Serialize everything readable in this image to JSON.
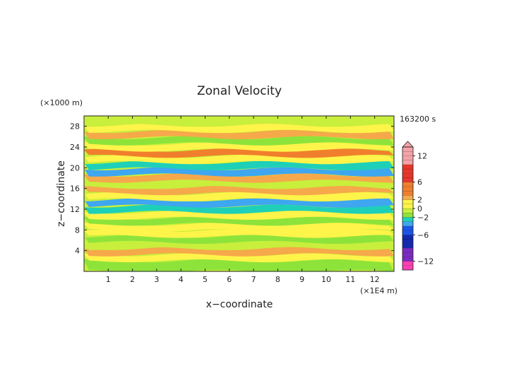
{
  "chart_data": {
    "type": "heatmap",
    "title": "Zonal Velocity",
    "time_label": "163200 s",
    "xlabel": "x−coordinate",
    "ylabel": "z−coordinate",
    "x_scale_label": "(×1E4 m)",
    "y_scale_label": "(×1000 m)",
    "xlim": [
      0,
      12.8
    ],
    "ylim": [
      0,
      30
    ],
    "x_ticks": [
      1,
      2,
      3,
      4,
      5,
      6,
      7,
      8,
      9,
      10,
      11,
      12
    ],
    "x_tick_labels": [
      "1",
      "2",
      "3",
      "4",
      "5",
      "6",
      "7",
      "8",
      "9",
      "10",
      "11",
      "12"
    ],
    "y_ticks": [
      4,
      8,
      12,
      16,
      20,
      24,
      28
    ],
    "y_tick_labels": [
      "4",
      "8",
      "12",
      "16",
      "20",
      "24",
      "28"
    ],
    "colorbar": {
      "levels": [
        -14,
        -13,
        -12,
        -11,
        -10,
        -9,
        -8,
        -7,
        -6,
        -5,
        -4,
        -3,
        -2,
        -1,
        0,
        1,
        2,
        3,
        4,
        5,
        6,
        7,
        8,
        9,
        10,
        11,
        12,
        13,
        14
      ],
      "tick_values": [
        12,
        6,
        2,
        0,
        -2,
        -6,
        -12
      ],
      "tick_labels": [
        "12",
        "6",
        "2",
        "0",
        "−2",
        "−6",
        "−12"
      ]
    },
    "colors": {
      "pink_high": "#f4a3a8",
      "red": "#e8352a",
      "orange": "#f07f2d",
      "light_orange": "#f5a94a",
      "yellow": "#fff44a",
      "yellow_green": "#c8ef3c",
      "green": "#8ee33a",
      "cyan": "#1fd0b8",
      "light_blue": "#3fa6f0",
      "blue": "#1a55e8",
      "dark_blue": "#1428b0",
      "purple": "#7a2bc0",
      "magenta": "#ff3fb4"
    },
    "bands": [
      {
        "z": 1.5,
        "value": -1.5
      },
      {
        "z": 2.6,
        "value": 1.2
      },
      {
        "z": 3.8,
        "value": 2.4
      },
      {
        "z": 5.0,
        "value": 0.3
      },
      {
        "z": 6.2,
        "value": -0.9
      },
      {
        "z": 7.3,
        "value": 1.6
      },
      {
        "z": 8.5,
        "value": 0.8
      },
      {
        "z": 9.7,
        "value": -0.8
      },
      {
        "z": 10.8,
        "value": 1.9
      },
      {
        "z": 12.0,
        "value": -1.6
      },
      {
        "z": 13.2,
        "value": -3.2
      },
      {
        "z": 14.4,
        "value": 1.2
      },
      {
        "z": 15.6,
        "value": 2.6
      },
      {
        "z": 16.8,
        "value": -0.5
      },
      {
        "z": 18.0,
        "value": 2.8
      },
      {
        "z": 19.2,
        "value": -3.6
      },
      {
        "z": 20.4,
        "value": -2.4
      },
      {
        "z": 21.6,
        "value": 0.9
      },
      {
        "z": 22.8,
        "value": 3.2
      },
      {
        "z": 24.0,
        "value": 1.3
      },
      {
        "z": 25.2,
        "value": -0.9
      },
      {
        "z": 26.4,
        "value": 2.2
      },
      {
        "z": 27.6,
        "value": 0.7
      },
      {
        "z": 28.8,
        "value": 0.2
      }
    ]
  }
}
